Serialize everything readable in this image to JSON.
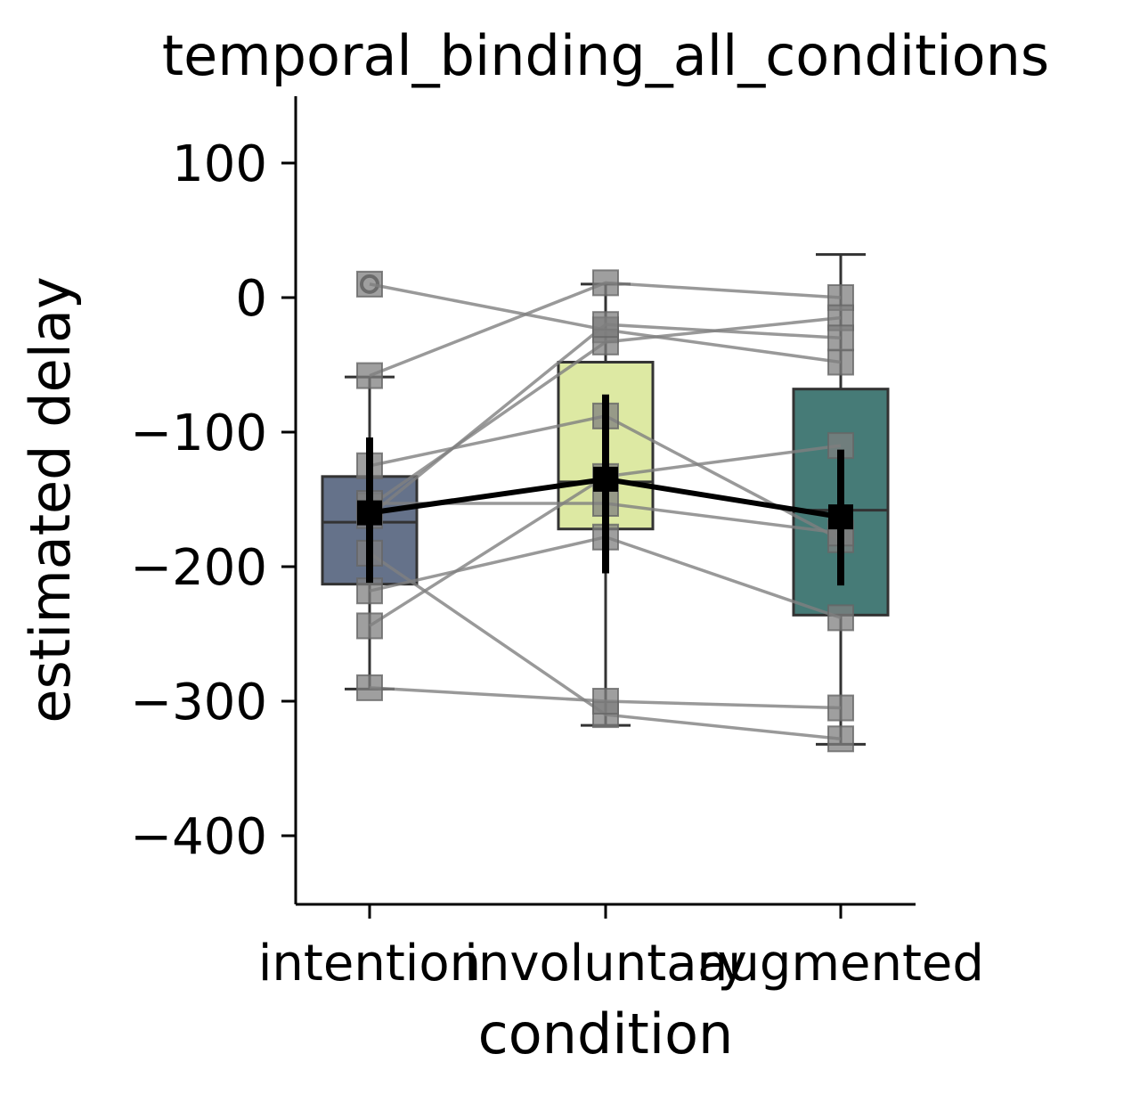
{
  "chart_data": {
    "type": "box",
    "title": "temporal_binding_all_conditions",
    "xlabel": "condition",
    "ylabel": "estimated delay",
    "ylim": [
      -450,
      150
    ],
    "yticks": [
      100,
      0,
      -100,
      -200,
      -300,
      -400
    ],
    "ytick_labels": [
      "100",
      "0",
      "−100",
      "−200",
      "−300",
      "−400"
    ],
    "categories": [
      "intention",
      "involuntary",
      "augmented"
    ],
    "colors": {
      "intention": "#5d6a84",
      "involuntary": "#dbe89e",
      "augmented": "#3c7470",
      "subject_point": "#7f7f7f",
      "subject_line": "#7f7f7f",
      "mean_line": "#000000",
      "box_edge": "#333333"
    },
    "boxes": [
      {
        "category": "intention",
        "q1": -213,
        "median": -167,
        "q3": -133,
        "whisker_low": -291,
        "whisker_high": -59,
        "outliers": [
          10
        ]
      },
      {
        "category": "involuntary",
        "q1": -172,
        "median": -137,
        "q3": -48,
        "whisker_low": -318,
        "whisker_high": 10,
        "outliers": []
      },
      {
        "category": "augmented",
        "q1": -236,
        "median": -158,
        "q3": -68,
        "whisker_low": -332,
        "whisker_high": 32,
        "outliers": []
      }
    ],
    "mean": {
      "values": [
        -160,
        -135,
        -163
      ],
      "ci_low": [
        -212,
        -205,
        -214
      ],
      "ci_high": [
        -104,
        -72,
        -113
      ]
    },
    "subjects": [
      {
        "values": [
          10,
          -24,
          -48
        ]
      },
      {
        "values": [
          -58,
          11,
          0
        ]
      },
      {
        "values": [
          -125,
          -88,
          -180
        ]
      },
      {
        "values": [
          -155,
          -33,
          -15
        ]
      },
      {
        "values": [
          -153,
          -153,
          -175
        ]
      },
      {
        "values": [
          -162,
          -20,
          -30
        ]
      },
      {
        "values": [
          -190,
          -310,
          -328
        ]
      },
      {
        "values": [
          -218,
          -178,
          -238
        ]
      },
      {
        "values": [
          -244,
          -133,
          -110
        ]
      },
      {
        "values": [
          -290,
          -300,
          -305
        ]
      }
    ]
  }
}
